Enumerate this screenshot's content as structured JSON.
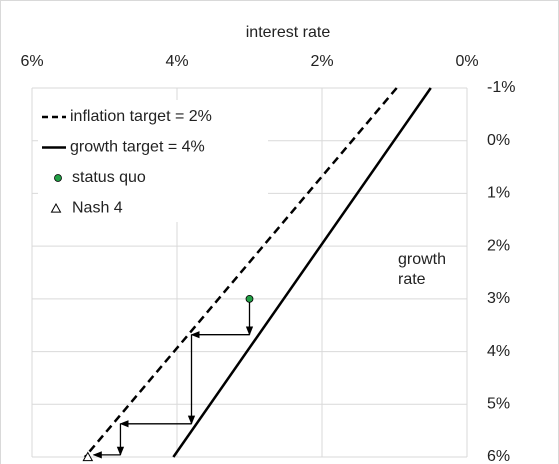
{
  "chart_data": {
    "type": "line",
    "x_label": "interest rate",
    "y_label": "growth rate",
    "xlim": [
      6,
      0
    ],
    "xticks": [
      {
        "value": 6,
        "label": "6%"
      },
      {
        "value": 4,
        "label": "4%"
      },
      {
        "value": 2,
        "label": "2%"
      },
      {
        "value": 0,
        "label": "0%"
      }
    ],
    "ylim": [
      -1,
      6
    ],
    "yticks": [
      {
        "value": -1,
        "label": "-1%"
      },
      {
        "value": 0,
        "label": "0%"
      },
      {
        "value": 1,
        "label": "1%"
      },
      {
        "value": 2,
        "label": "2%"
      },
      {
        "value": 3,
        "label": "3%"
      },
      {
        "value": 4,
        "label": "4%"
      },
      {
        "value": 5,
        "label": "5%"
      },
      {
        "value": 6,
        "label": "6%"
      }
    ],
    "grid": true,
    "legend": "top-left",
    "series": [
      {
        "name": "inflation target = 2%",
        "color": "#000000",
        "style": "dashed",
        "x": [
          0.97,
          5.27
        ],
        "y": [
          -1,
          6
        ]
      },
      {
        "name": "growth target = 4%",
        "color": "#000000",
        "style": "solid",
        "x": [
          0.5,
          4.05
        ],
        "y": [
          -1,
          6
        ]
      },
      {
        "name": "status quo",
        "color": "#22a045",
        "style": "circle",
        "x": [
          3.0
        ],
        "y": [
          3.0
        ]
      },
      {
        "name": "Nash 4",
        "color": "#ffffff",
        "style": "triangle",
        "x": [
          5.23
        ],
        "y": [
          6.0
        ]
      }
    ],
    "path": {
      "x": [
        3.0,
        3.0,
        3.8,
        3.8,
        4.78,
        4.78,
        5.15
      ],
      "y": [
        3.0,
        3.68,
        3.68,
        5.37,
        5.37,
        5.96,
        5.96
      ]
    }
  }
}
